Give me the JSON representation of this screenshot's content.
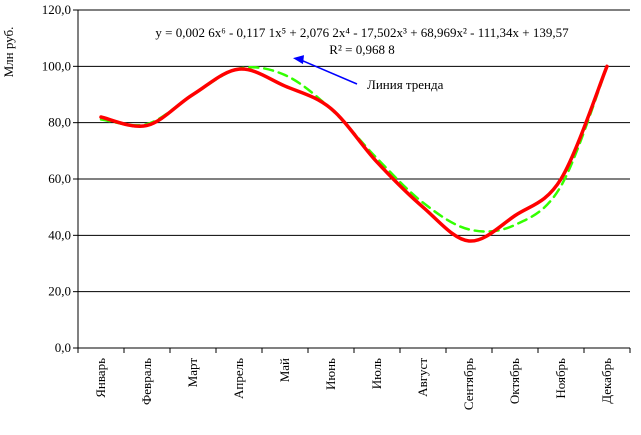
{
  "chart_data": {
    "type": "line",
    "ylabel": "Млн руб.",
    "xlabel": "",
    "ylim": [
      0,
      120
    ],
    "yticks": [
      "0,0",
      "20,0",
      "40,0",
      "60,0",
      "80,0",
      "100,0",
      "120,0"
    ],
    "categories": [
      "Январь",
      "Февраль",
      "Март",
      "Апрель",
      "Май",
      "Июнь",
      "Июль",
      "Август",
      "Сентябрь",
      "Октябрь",
      "Ноябрь",
      "Декабрь"
    ],
    "series": [
      {
        "style": "solid",
        "color": "#ff0000",
        "values": [
          82,
          79,
          90,
          99,
          93,
          85,
          66,
          50,
          38,
          47,
          60,
          100
        ]
      },
      {
        "name": "Линия тренда",
        "style": "dashed",
        "color": "#33ff00",
        "values": [
          81.1,
          79.5,
          89.9,
          99.2,
          96.9,
          84.8,
          67.3,
          51.6,
          42.1,
          43.7,
          57.5,
          99.8
        ]
      }
    ],
    "trend_equation": "y = 0,002 6x⁶ - 0,117 1x⁵ + 2,076 2x⁴ - 17,502x³ + 68,969x² - 111,34x + 139,57",
    "r_squared": "R² = 0,968 8",
    "grid": "horizontal",
    "arrow_color": "#0000ff"
  }
}
